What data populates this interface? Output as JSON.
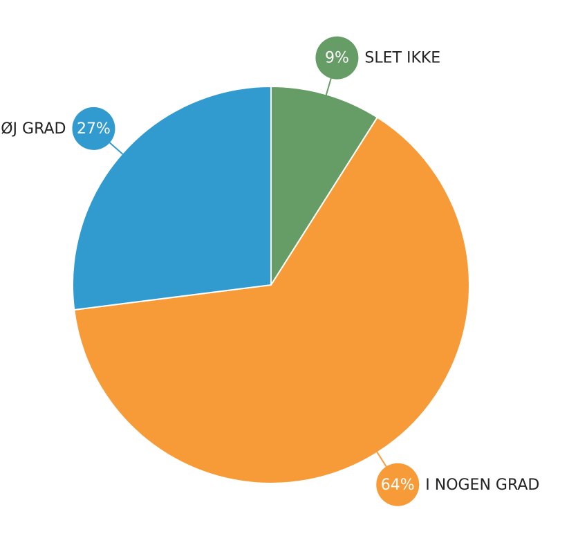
{
  "chart_data": {
    "type": "pie",
    "categories": [
      "SLET IKKE",
      "I NOGEN GRAD",
      "I HØJ GRAD"
    ],
    "values": [
      9,
      64,
      27
    ],
    "value_labels": [
      "9%",
      "64%",
      "27%"
    ],
    "colors": [
      "#669c66",
      "#f79b38",
      "#319ace"
    ]
  }
}
